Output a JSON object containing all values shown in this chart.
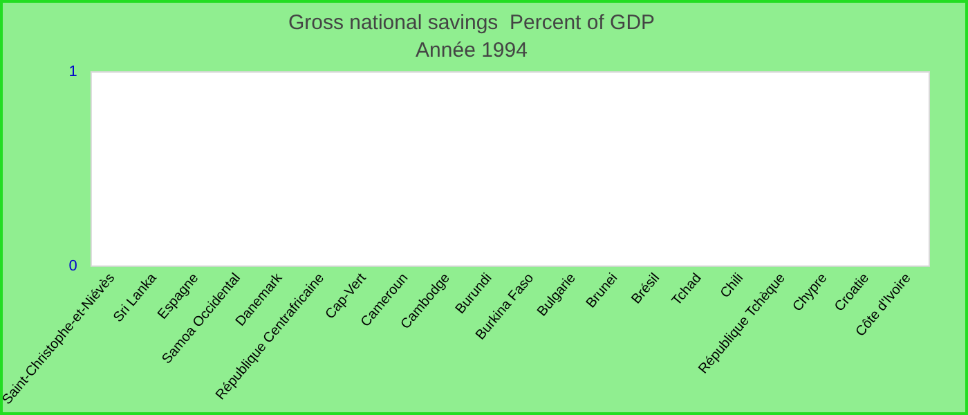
{
  "chart_data": {
    "type": "bar",
    "title": "Gross national savings  Percent of GDP",
    "subtitle": "Année 1994",
    "categories": [
      "Saint-Christophe-et-Niévès",
      "Sri Lanka",
      "Espagne",
      "Samoa Occidental",
      "Danemark",
      "République Centrafricaine",
      "Cap-Vert",
      "Cameroun",
      "Cambodge",
      "Burundi",
      "Burkina Faso",
      "Bulgarie",
      "Brunei",
      "Brésil",
      "Tchad",
      "Chili",
      "République Tchèque",
      "Chypre",
      "Croatie",
      "Côte d'Ivoire"
    ],
    "values": [
      null,
      null,
      null,
      null,
      null,
      null,
      null,
      null,
      null,
      null,
      null,
      null,
      null,
      null,
      null,
      null,
      null,
      null,
      null,
      null
    ],
    "ylim": [
      0,
      1
    ],
    "yticks": [
      0,
      1
    ],
    "grid": false,
    "legend": false
  }
}
